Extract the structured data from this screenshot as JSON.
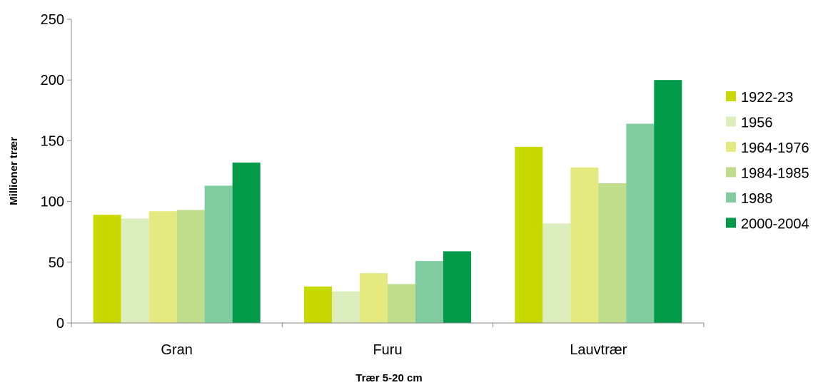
{
  "chart_data": {
    "type": "bar",
    "title": "",
    "xlabel": "Trær 5-20 cm",
    "ylabel": "Millioner trær",
    "categories": [
      "Gran",
      "Furu",
      "Lauvtrær"
    ],
    "ylim": [
      0,
      250
    ],
    "yticks": [
      "0",
      "50",
      "100",
      "150",
      "200",
      "250"
    ],
    "grid": false,
    "legend_position": "right",
    "series": [
      {
        "name": "1922-23",
        "color": "#c8d900",
        "values": [
          89,
          30,
          145
        ]
      },
      {
        "name": "1956",
        "color": "#dcedbe",
        "values": [
          86,
          26,
          82
        ]
      },
      {
        "name": "1964-1976",
        "color": "#e4ea80",
        "values": [
          92,
          41,
          128
        ]
      },
      {
        "name": "1984-1985",
        "color": "#bfdd8a",
        "values": [
          93,
          32,
          115
        ]
      },
      {
        "name": "1988",
        "color": "#80cba0",
        "values": [
          113,
          51,
          164
        ]
      },
      {
        "name": "2000-2004",
        "color": "#009a48",
        "values": [
          132,
          59,
          200
        ]
      }
    ]
  }
}
